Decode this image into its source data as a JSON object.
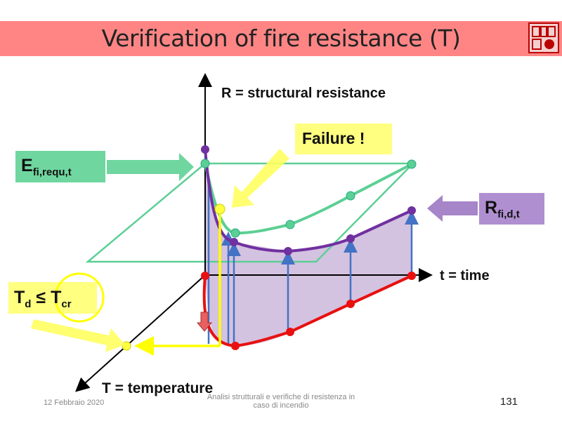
{
  "slide": {
    "title": "Verification of fire resistance (T)",
    "seal_text": "logo seal"
  },
  "labels": {
    "r_axis": "R = structural resistance",
    "t_axis": "t = time",
    "temp_axis": "T = temperature",
    "failure": "Failure !",
    "e_main": "E",
    "e_sub": "fi,requ,t",
    "r_main": "R",
    "r_sub": "fi,d,t",
    "td_main": "T",
    "td_sub": "d",
    "leq": "≤",
    "tcr_main": "T",
    "tcr_sub": "cr"
  },
  "footer": {
    "date": "12 Febbraio 2020",
    "course_line1": "Analisi strutturali e verifiche di resistenza in",
    "course_line2": "caso di incendio",
    "page": "131"
  },
  "colors": {
    "title_bar": "#ff8585",
    "green": "#5ccf94",
    "purple": "#7030a0",
    "red": "#e81010",
    "yellow": "#ffff40",
    "blue": "#4472c4",
    "fill": "#cdb7dc"
  }
}
